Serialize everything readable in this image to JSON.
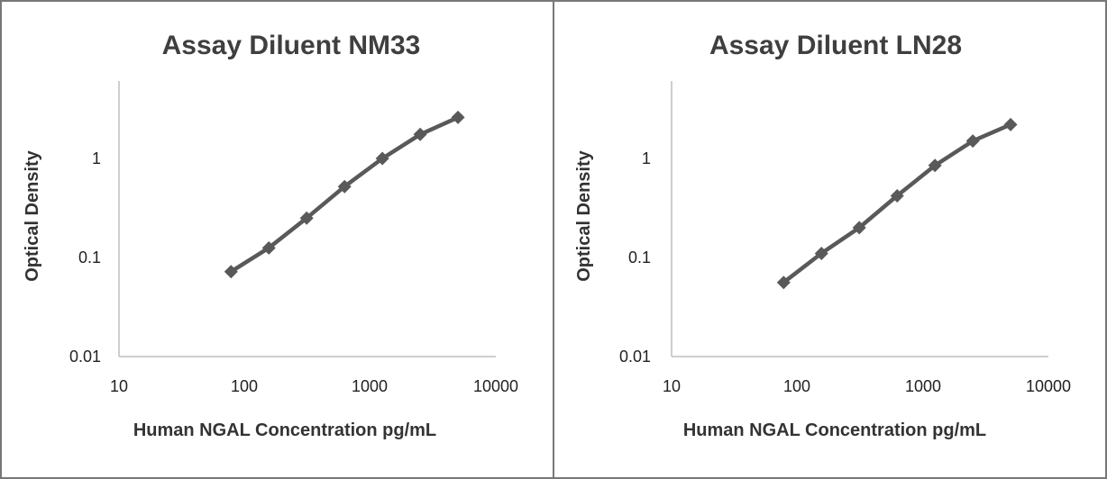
{
  "chart_data": [
    {
      "type": "line",
      "title": "Assay Diluent NM33",
      "xlabel": "Human NGAL Concentration pg/mL",
      "ylabel": "Optical Density",
      "xscale": "log",
      "yscale": "log",
      "xlim": [
        10,
        10000
      ],
      "ylim": [
        0.01,
        5
      ],
      "xticks": [
        "10",
        "100",
        "1000",
        "10000"
      ],
      "yticks": [
        "0.01",
        "0.1",
        "1"
      ],
      "grid": false,
      "legend": "none",
      "line_color": "#595959",
      "series": [
        {
          "x": [
            78,
            156,
            312,
            625,
            1250,
            2500,
            5000
          ],
          "y": [
            0.072,
            0.125,
            0.25,
            0.52,
            1.0,
            1.75,
            2.6
          ]
        }
      ]
    },
    {
      "type": "line",
      "title": "Assay Diluent LN28",
      "xlabel": "Human NGAL Concentration pg/mL",
      "ylabel": "Optical Density",
      "xscale": "log",
      "yscale": "log",
      "xlim": [
        10,
        10000
      ],
      "ylim": [
        0.01,
        5
      ],
      "xticks": [
        "10",
        "100",
        "1000",
        "10000"
      ],
      "yticks": [
        "0.01",
        "0.1",
        "1"
      ],
      "grid": false,
      "legend": "none",
      "line_color": "#595959",
      "series": [
        {
          "x": [
            78,
            156,
            312,
            625,
            1250,
            2500,
            5000
          ],
          "y": [
            0.056,
            0.11,
            0.2,
            0.42,
            0.85,
            1.5,
            2.2
          ]
        }
      ]
    }
  ]
}
